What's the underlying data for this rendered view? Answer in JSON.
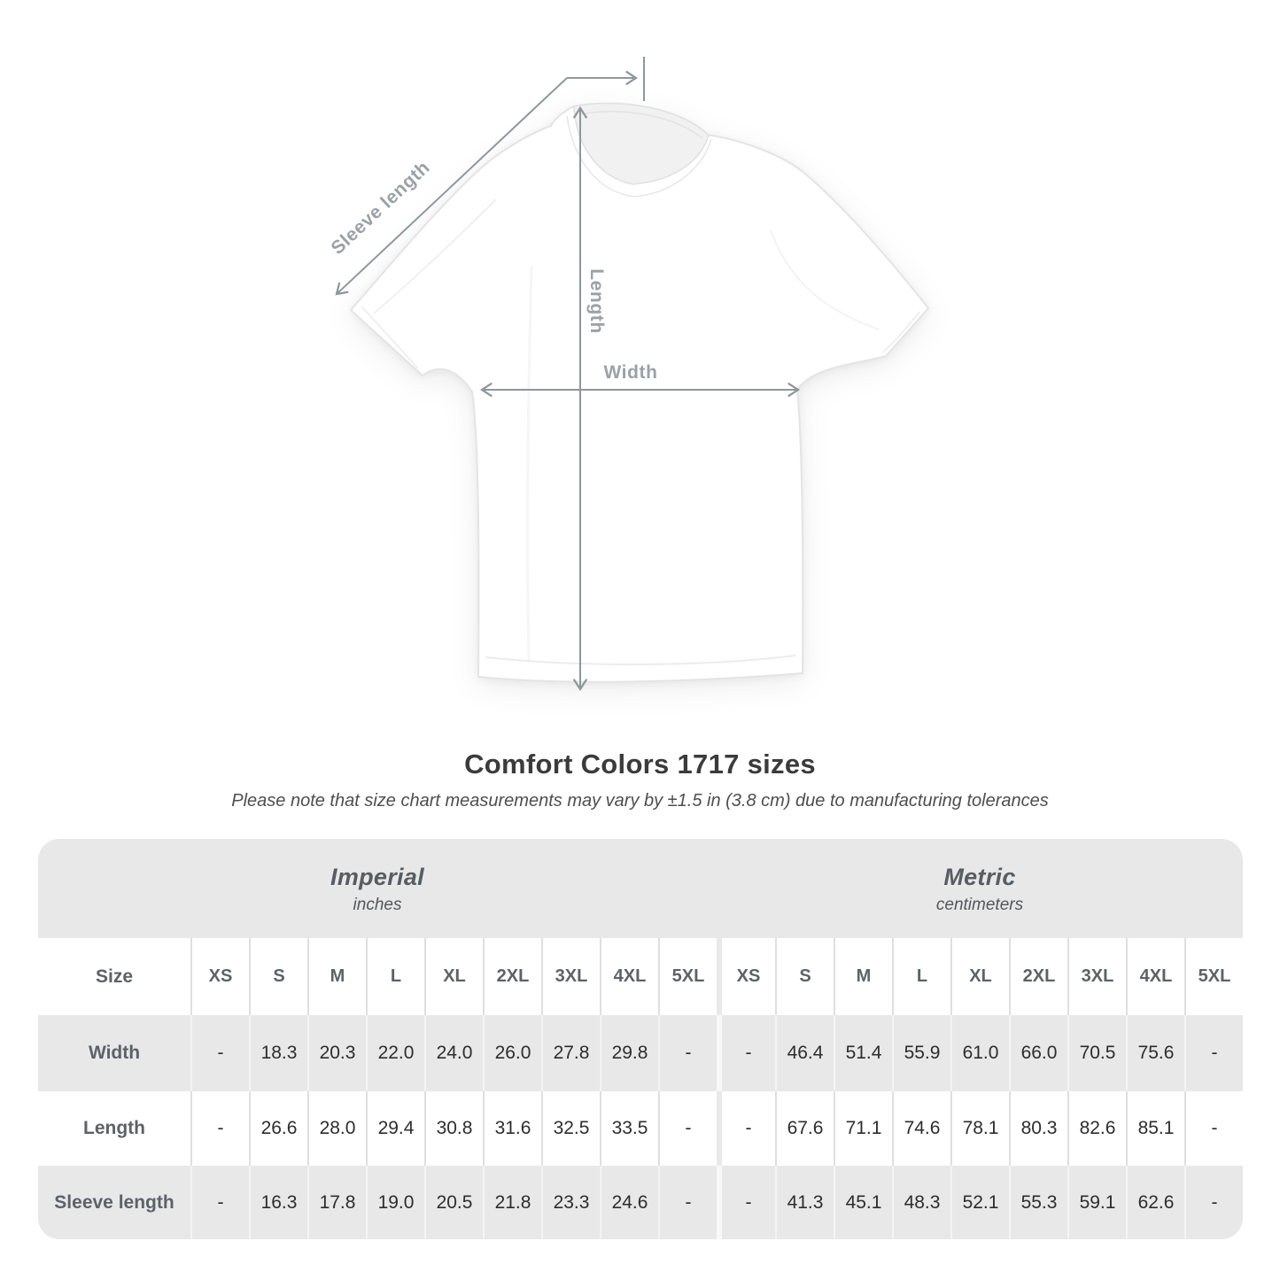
{
  "title": "Comfort Colors 1717 sizes",
  "subtitle": "Please note that size chart measurements may vary by ±1.5 in (3.8 cm) due to manufacturing tolerances",
  "diagram": {
    "labels": {
      "sleeve": "Sleeve length",
      "length": "Length",
      "width": "Width"
    },
    "line_color": "#8f979b",
    "label_color": "#9ba1a5"
  },
  "table": {
    "size_header": "Size",
    "sizes": [
      "XS",
      "S",
      "M",
      "L",
      "XL",
      "2XL",
      "3XL",
      "4XL",
      "5XL"
    ],
    "unit_groups": [
      {
        "label": "Imperial",
        "sublabel": "inches"
      },
      {
        "label": "Metric",
        "sublabel": "centimeters"
      }
    ],
    "rows": [
      {
        "label": "Width",
        "imperial": [
          "-",
          "18.3",
          "20.3",
          "22.0",
          "24.0",
          "26.0",
          "27.8",
          "29.8",
          "-"
        ],
        "metric": [
          "-",
          "46.4",
          "51.4",
          "55.9",
          "61.0",
          "66.0",
          "70.5",
          "75.6",
          "-"
        ]
      },
      {
        "label": "Length",
        "imperial": [
          "-",
          "26.6",
          "28.0",
          "29.4",
          "30.8",
          "31.6",
          "32.5",
          "33.5",
          "-"
        ],
        "metric": [
          "-",
          "67.6",
          "71.1",
          "74.6",
          "78.1",
          "80.3",
          "82.6",
          "85.1",
          "-"
        ]
      },
      {
        "label": "Sleeve length",
        "imperial": [
          "-",
          "16.3",
          "17.8",
          "19.0",
          "20.5",
          "21.8",
          "23.3",
          "24.6",
          "-"
        ],
        "metric": [
          "-",
          "41.3",
          "45.1",
          "48.3",
          "52.1",
          "55.3",
          "59.1",
          "62.6",
          "-"
        ]
      }
    ],
    "colors": {
      "band": "#e8e8e8",
      "row_alt": "#e8e8e8",
      "separator": "#dfdfdf",
      "header_text": "#5d6267",
      "value_text": "#2d2d2d"
    }
  }
}
